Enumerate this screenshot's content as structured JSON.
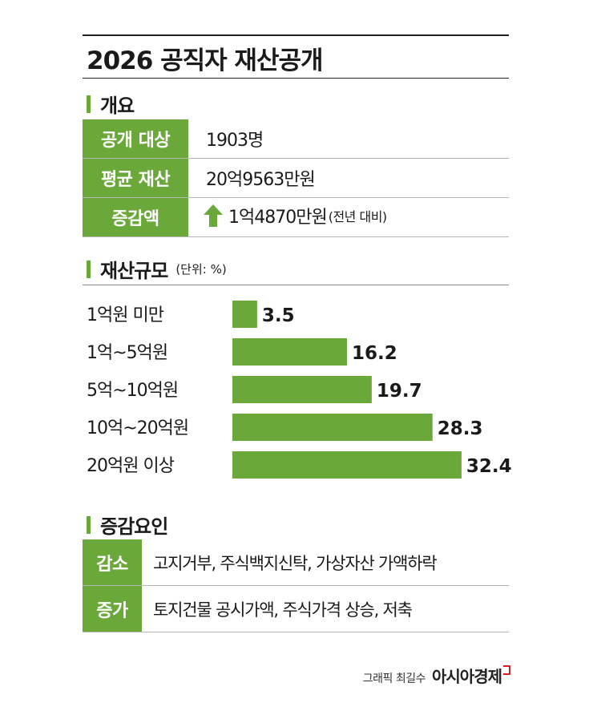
{
  "title": "2026 공직자 재산공개",
  "overview": {
    "heading": "개요",
    "rows": [
      {
        "label": "공개 대상",
        "value": "1903명"
      },
      {
        "label": "평균 재산",
        "value": "20억9563만원"
      },
      {
        "label": "증감액",
        "value": "1억4870만원",
        "note": "(전년 대비)",
        "trend_icon": "up-arrow-icon"
      }
    ]
  },
  "scale_section": {
    "heading": "재산규모",
    "unit": "(단위: %)"
  },
  "chart_data": {
    "type": "bar",
    "orientation": "horizontal",
    "categories": [
      "1억원 미만",
      "1억~5억원",
      "5억~10억원",
      "10억~20억원",
      "20억원 이상"
    ],
    "values": [
      3.5,
      16.2,
      19.7,
      28.3,
      32.4
    ],
    "value_labels": [
      "3.5",
      "16.2",
      "19.7",
      "28.3",
      "32.4"
    ],
    "xlim": [
      0,
      40
    ],
    "grid": false,
    "bar_color": "#6aa83a"
  },
  "factors": {
    "heading": "증감요인",
    "rows": [
      {
        "label": "감소",
        "value": "고지거부, 주식백지신탁, 가상자산 가액하락"
      },
      {
        "label": "증가",
        "value": "토지건물 공시가액, 주식가격 상승, 저축"
      }
    ]
  },
  "credit": {
    "text": "그래픽 최길수",
    "logo": "아시아경제"
  },
  "colors": {
    "accent": "#6aa83a",
    "logo_mark": "#d81f26"
  }
}
